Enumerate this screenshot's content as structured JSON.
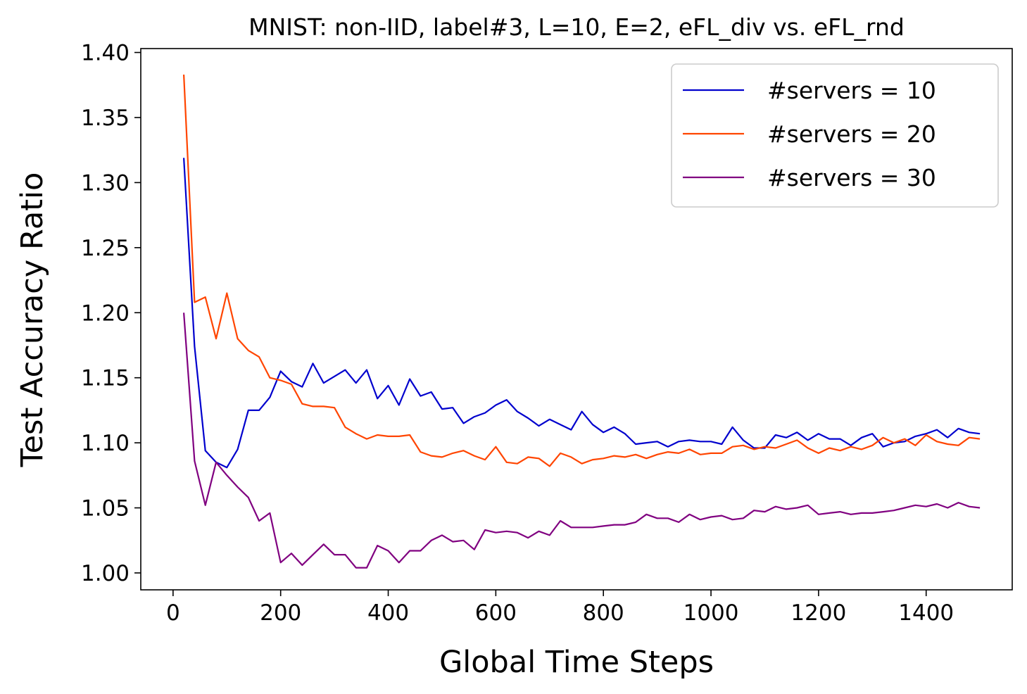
{
  "chart_data": {
    "type": "line",
    "title": "MNIST: non-IID, label#3, L=10, E=2, eFL_div vs. eFL_rnd",
    "xlabel": "Global Time Steps",
    "ylabel": "Test Accuracy Ratio",
    "xlim": [
      -60,
      1560
    ],
    "ylim": [
      0.987,
      1.403
    ],
    "xticks": [
      0,
      200,
      400,
      600,
      800,
      1000,
      1200,
      1400
    ],
    "yticks": [
      1.0,
      1.05,
      1.1,
      1.15,
      1.2,
      1.25,
      1.3,
      1.35,
      1.4
    ],
    "xtick_labels": [
      "0",
      "200",
      "400",
      "600",
      "800",
      "1000",
      "1200",
      "1400"
    ],
    "ytick_labels": [
      "1.00",
      "1.05",
      "1.10",
      "1.15",
      "1.20",
      "1.25",
      "1.30",
      "1.35",
      "1.40"
    ],
    "legend_position": "top-right",
    "grid": false,
    "x": [
      20,
      40,
      60,
      80,
      100,
      120,
      140,
      160,
      180,
      200,
      220,
      240,
      260,
      280,
      300,
      320,
      340,
      360,
      380,
      400,
      420,
      440,
      460,
      480,
      500,
      520,
      540,
      560,
      580,
      600,
      620,
      640,
      660,
      680,
      700,
      720,
      740,
      760,
      780,
      800,
      820,
      840,
      860,
      880,
      900,
      920,
      940,
      960,
      980,
      1000,
      1020,
      1040,
      1060,
      1080,
      1100,
      1120,
      1140,
      1160,
      1180,
      1200,
      1220,
      1240,
      1260,
      1280,
      1300,
      1320,
      1340,
      1360,
      1380,
      1400,
      1420,
      1440,
      1460,
      1480,
      1500
    ],
    "series": [
      {
        "name": "#servers = 10",
        "color": "#0000cd",
        "values": [
          1.319,
          1.174,
          1.094,
          1.085,
          1.081,
          1.095,
          1.125,
          1.125,
          1.135,
          1.155,
          1.147,
          1.143,
          1.161,
          1.146,
          1.151,
          1.156,
          1.146,
          1.156,
          1.134,
          1.144,
          1.129,
          1.149,
          1.136,
          1.139,
          1.126,
          1.127,
          1.115,
          1.12,
          1.123,
          1.129,
          1.133,
          1.124,
          1.119,
          1.113,
          1.118,
          1.114,
          1.11,
          1.124,
          1.114,
          1.108,
          1.112,
          1.107,
          1.099,
          1.1,
          1.101,
          1.097,
          1.101,
          1.102,
          1.101,
          1.101,
          1.099,
          1.112,
          1.102,
          1.096,
          1.096,
          1.106,
          1.104,
          1.108,
          1.102,
          1.107,
          1.103,
          1.103,
          1.098,
          1.104,
          1.107,
          1.097,
          1.1,
          1.101,
          1.105,
          1.107,
          1.11,
          1.104,
          1.111,
          1.108,
          1.107
        ]
      },
      {
        "name": "#servers = 20",
        "color": "#ff4500",
        "values": [
          1.383,
          1.208,
          1.212,
          1.18,
          1.215,
          1.18,
          1.171,
          1.166,
          1.15,
          1.148,
          1.145,
          1.13,
          1.128,
          1.128,
          1.127,
          1.112,
          1.107,
          1.103,
          1.106,
          1.105,
          1.105,
          1.106,
          1.093,
          1.09,
          1.089,
          1.092,
          1.094,
          1.09,
          1.087,
          1.097,
          1.085,
          1.084,
          1.089,
          1.088,
          1.082,
          1.092,
          1.089,
          1.084,
          1.087,
          1.088,
          1.09,
          1.089,
          1.091,
          1.088,
          1.091,
          1.093,
          1.092,
          1.095,
          1.091,
          1.092,
          1.092,
          1.097,
          1.098,
          1.095,
          1.097,
          1.096,
          1.099,
          1.102,
          1.096,
          1.092,
          1.096,
          1.094,
          1.097,
          1.095,
          1.098,
          1.104,
          1.1,
          1.103,
          1.098,
          1.106,
          1.101,
          1.099,
          1.098,
          1.104,
          1.103
        ]
      },
      {
        "name": "#servers = 30",
        "color": "#800080",
        "values": [
          1.2,
          1.086,
          1.052,
          1.085,
          1.075,
          1.066,
          1.058,
          1.04,
          1.046,
          1.008,
          1.015,
          1.006,
          1.014,
          1.022,
          1.014,
          1.014,
          1.004,
          1.004,
          1.021,
          1.017,
          1.008,
          1.017,
          1.017,
          1.025,
          1.029,
          1.024,
          1.025,
          1.018,
          1.033,
          1.031,
          1.032,
          1.031,
          1.027,
          1.032,
          1.029,
          1.04,
          1.035,
          1.035,
          1.035,
          1.036,
          1.037,
          1.037,
          1.039,
          1.045,
          1.042,
          1.042,
          1.039,
          1.045,
          1.041,
          1.043,
          1.044,
          1.041,
          1.042,
          1.048,
          1.047,
          1.051,
          1.049,
          1.05,
          1.052,
          1.045,
          1.046,
          1.047,
          1.045,
          1.046,
          1.046,
          1.047,
          1.048,
          1.05,
          1.052,
          1.051,
          1.053,
          1.05,
          1.054,
          1.051,
          1.05
        ]
      }
    ]
  }
}
